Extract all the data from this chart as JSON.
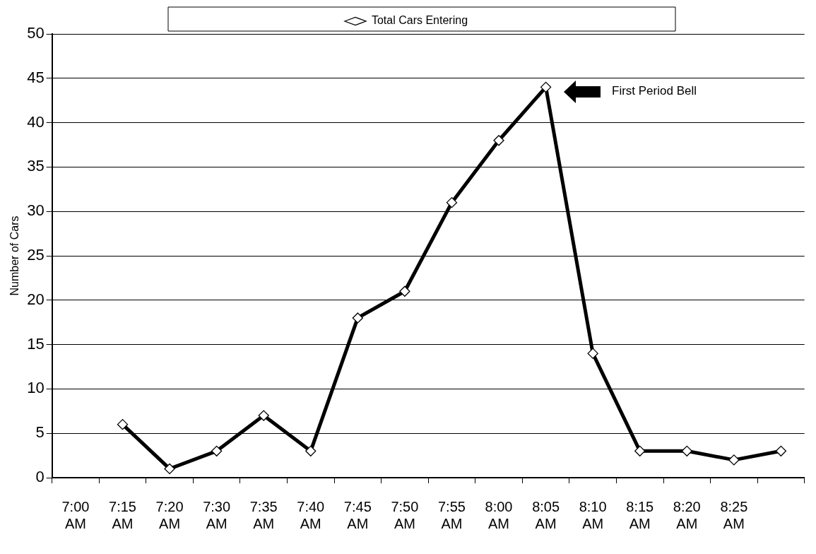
{
  "chart_data": {
    "type": "line",
    "ylabel": "Number of Cars",
    "categories": [
      "7:00 AM",
      "7:15 AM",
      "7:20 AM",
      "7:30 AM",
      "7:35 AM",
      "7:40 AM",
      "7:45 AM",
      "7:50 AM",
      "7:55 AM",
      "8:00 AM",
      "8:05 AM",
      "8:10 AM",
      "8:15 AM",
      "8:20 AM",
      "8:25 AM",
      null
    ],
    "series": [
      {
        "name": "Total Cars Entering",
        "color": "#000000",
        "values": [
          null,
          6,
          1,
          3,
          7,
          3,
          18,
          21,
          31,
          38,
          44,
          14,
          3,
          3,
          2,
          3
        ]
      }
    ],
    "ylim": [
      0,
      50
    ],
    "yticks": [
      0,
      5,
      10,
      15,
      20,
      25,
      30,
      35,
      40,
      45,
      50
    ],
    "grid": "y",
    "legend": "top",
    "marker": "diamond",
    "line_style": "solid",
    "annotations": [
      "First Period Bell"
    ]
  }
}
